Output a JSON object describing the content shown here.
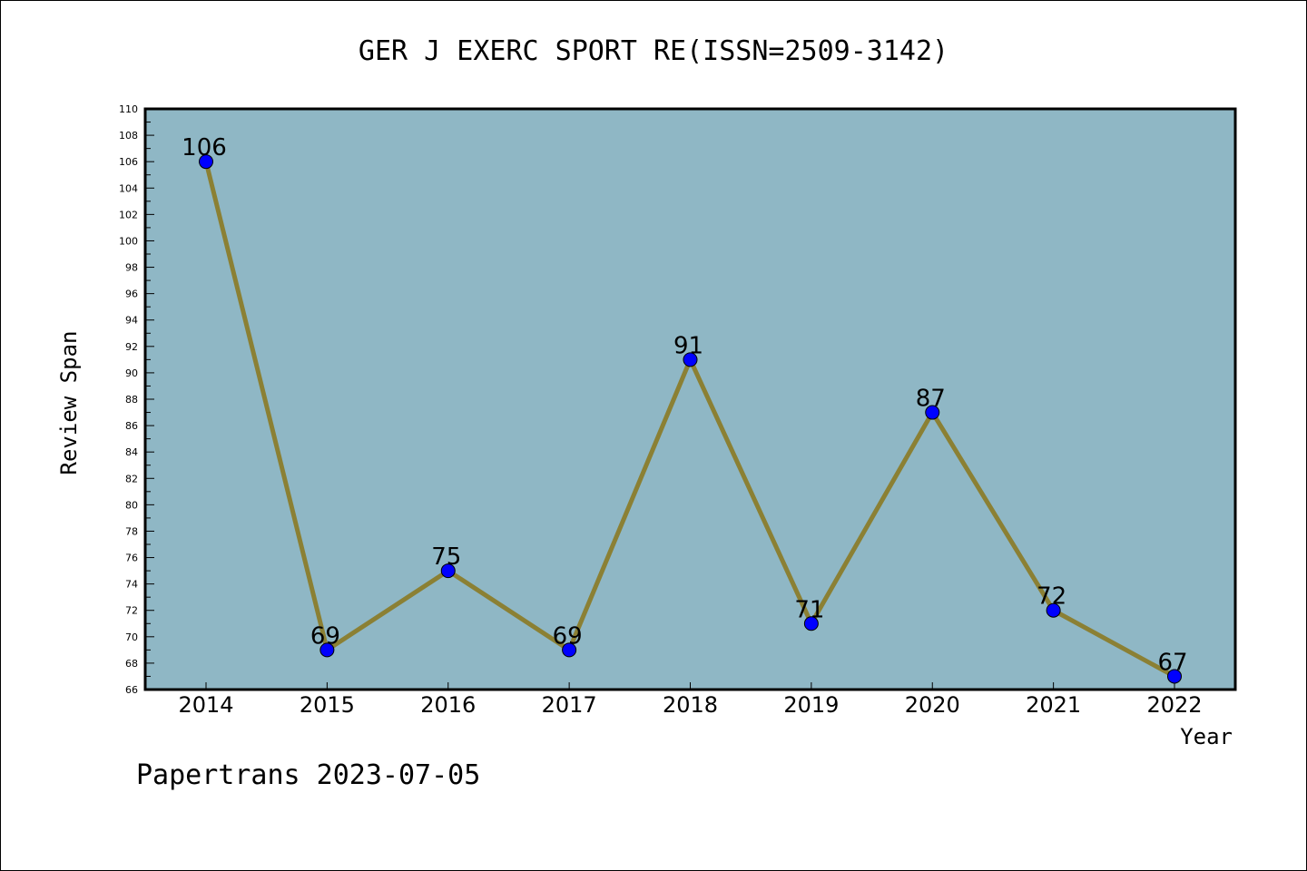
{
  "chart_data": {
    "type": "line",
    "title": "GER J EXERC SPORT RE(ISSN=2509-3142)",
    "xlabel": "Year",
    "ylabel": "Review Span",
    "footer": "Papertrans 2023-07-05",
    "categories": [
      "2014",
      "2015",
      "2016",
      "2017",
      "2018",
      "2019",
      "2020",
      "2021",
      "2022"
    ],
    "series": [
      {
        "values": [
          106,
          69,
          75,
          69,
          91,
          71,
          87,
          72,
          67
        ]
      }
    ],
    "ylim": [
      66,
      110
    ],
    "ytick_step": 2,
    "grid": false,
    "colors": {
      "plot_background": "#8fb7c5",
      "line": "#8b8034",
      "marker": "#0000ff"
    }
  }
}
